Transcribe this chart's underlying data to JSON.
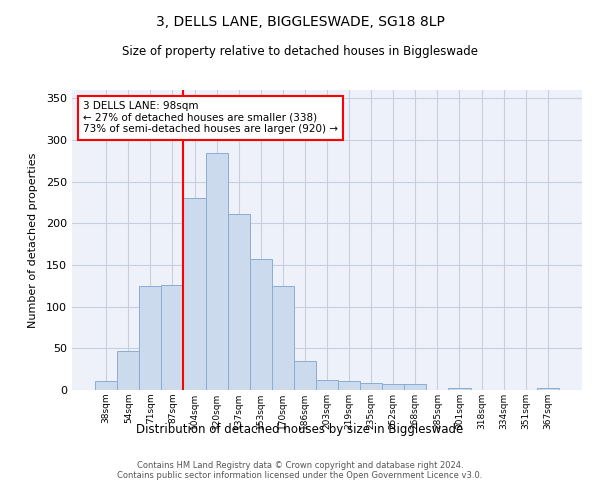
{
  "title": "3, DELLS LANE, BIGGLESWADE, SG18 8LP",
  "subtitle": "Size of property relative to detached houses in Biggleswade",
  "xlabel": "Distribution of detached houses by size in Biggleswade",
  "ylabel": "Number of detached properties",
  "bin_labels": [
    "38sqm",
    "54sqm",
    "71sqm",
    "87sqm",
    "104sqm",
    "120sqm",
    "137sqm",
    "153sqm",
    "170sqm",
    "186sqm",
    "203sqm",
    "219sqm",
    "235sqm",
    "252sqm",
    "268sqm",
    "285sqm",
    "301sqm",
    "318sqm",
    "334sqm",
    "351sqm",
    "367sqm"
  ],
  "bar_heights": [
    11,
    47,
    125,
    126,
    231,
    284,
    211,
    157,
    125,
    35,
    12,
    11,
    9,
    7,
    7,
    0,
    3,
    0,
    0,
    0,
    3
  ],
  "bar_color": "#ccdaee",
  "bar_edge_color": "#8aadd4",
  "annotation_text": "3 DELLS LANE: 98sqm\n← 27% of detached houses are smaller (338)\n73% of semi-detached houses are larger (920) →",
  "annotation_box_facecolor": "white",
  "annotation_box_edgecolor": "red",
  "vline_color": "red",
  "vline_x_idx": 4.5,
  "ylim": [
    0,
    360
  ],
  "yticks": [
    0,
    50,
    100,
    150,
    200,
    250,
    300,
    350
  ],
  "bg_color": "#eef1f9",
  "grid_color": "#c8cedd",
  "footer_line1": "Contains HM Land Registry data © Crown copyright and database right 2024.",
  "footer_line2": "Contains public sector information licensed under the Open Government Licence v3.0."
}
